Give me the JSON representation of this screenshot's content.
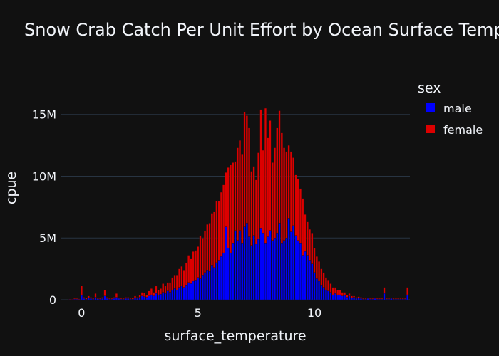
{
  "chart_data": {
    "type": "bar",
    "barmode": "stack",
    "title": "Snow Crab Catch Per Unit Effort by Ocean Surface Temperature",
    "xlabel": "surface_temperature",
    "ylabel": "cpue",
    "xlim": [
      -0.9,
      14.1
    ],
    "ylim": [
      0,
      18500000
    ],
    "x_ticks": [
      0,
      5,
      10
    ],
    "x_tick_labels": [
      "0",
      "5",
      "10"
    ],
    "y_ticks": [
      0,
      5000000,
      10000000,
      15000000
    ],
    "y_tick_labels": [
      "0",
      "5M",
      "10M",
      "15M"
    ],
    "grid": true,
    "legend": {
      "title": "sex",
      "position": "top-right"
    },
    "bin_width": 0.1,
    "x": [
      -0.5,
      -0.4,
      -0.3,
      -0.2,
      -0.1,
      0.0,
      0.1,
      0.2,
      0.3,
      0.4,
      0.5,
      0.6,
      0.7,
      0.8,
      0.9,
      1.0,
      1.1,
      1.2,
      1.3,
      1.4,
      1.5,
      1.6,
      1.7,
      1.8,
      1.9,
      2.0,
      2.1,
      2.2,
      2.3,
      2.4,
      2.5,
      2.6,
      2.7,
      2.8,
      2.9,
      3.0,
      3.1,
      3.2,
      3.3,
      3.4,
      3.5,
      3.6,
      3.7,
      3.8,
      3.9,
      4.0,
      4.1,
      4.2,
      4.3,
      4.4,
      4.5,
      4.6,
      4.7,
      4.8,
      4.9,
      5.0,
      5.1,
      5.2,
      5.3,
      5.4,
      5.5,
      5.6,
      5.7,
      5.8,
      5.9,
      6.0,
      6.1,
      6.2,
      6.3,
      6.4,
      6.5,
      6.6,
      6.7,
      6.8,
      6.9,
      7.0,
      7.1,
      7.2,
      7.3,
      7.4,
      7.5,
      7.6,
      7.7,
      7.8,
      7.9,
      8.0,
      8.1,
      8.2,
      8.3,
      8.4,
      8.5,
      8.6,
      8.7,
      8.8,
      8.9,
      9.0,
      9.1,
      9.2,
      9.3,
      9.4,
      9.5,
      9.6,
      9.7,
      9.8,
      9.9,
      10.0,
      10.1,
      10.2,
      10.3,
      10.4,
      10.5,
      10.6,
      10.7,
      10.8,
      10.9,
      11.0,
      11.1,
      11.2,
      11.3,
      11.4,
      11.5,
      11.6,
      11.7,
      11.8,
      11.9,
      12.0,
      12.1,
      12.2,
      12.3,
      12.4,
      12.5,
      12.6,
      12.7,
      12.8,
      12.9,
      13.0,
      13.1,
      13.2,
      13.3,
      13.4,
      13.5,
      13.6,
      13.7,
      13.8,
      13.9,
      14.0
    ],
    "series": [
      {
        "name": "male",
        "color": "#0000ff",
        "values": [
          0.03,
          0.02,
          0.05,
          0.04,
          0.03,
          0.35,
          0.1,
          0.05,
          0.15,
          0.1,
          0.05,
          0.2,
          0.08,
          0.05,
          0.1,
          0.3,
          0.1,
          0.05,
          0.05,
          0.1,
          0.2,
          0.1,
          0.05,
          0.05,
          0.1,
          0.1,
          0.05,
          0.05,
          0.15,
          0.1,
          0.2,
          0.3,
          0.25,
          0.2,
          0.3,
          0.4,
          0.3,
          0.5,
          0.4,
          0.45,
          0.6,
          0.5,
          0.7,
          0.6,
          0.8,
          0.9,
          0.8,
          1.0,
          1.1,
          1.0,
          1.2,
          1.4,
          1.3,
          1.5,
          1.6,
          1.8,
          1.7,
          2.0,
          2.2,
          2.4,
          2.3,
          2.8,
          2.6,
          3.0,
          3.2,
          3.5,
          3.8,
          5.9,
          4.2,
          3.8,
          4.6,
          5.6,
          4.8,
          5.6,
          4.6,
          5.9,
          6.2,
          5.1,
          4.4,
          5.2,
          4.5,
          4.9,
          5.8,
          5.4,
          4.6,
          5.1,
          5.6,
          4.8,
          5.0,
          5.4,
          6.2,
          4.6,
          4.8,
          5.0,
          6.6,
          5.5,
          6.0,
          5.2,
          4.8,
          4.6,
          3.6,
          3.9,
          3.6,
          3.2,
          2.9,
          2.2,
          1.7,
          1.5,
          1.2,
          1.0,
          0.8,
          0.7,
          0.6,
          0.4,
          0.5,
          0.4,
          0.4,
          0.3,
          0.35,
          0.2,
          0.3,
          0.15,
          0.2,
          0.1,
          0.15,
          0.1,
          0.05,
          0.05,
          0.1,
          0.05,
          0.05,
          0.1,
          0.05,
          0.05,
          0.05,
          0.5,
          0.05,
          0.05,
          0.1,
          0.05,
          0.05,
          0.05,
          0.05,
          0.05,
          0.05,
          0.4
        ]
      },
      {
        "name": "female",
        "color": "#dd0000",
        "values": [
          0.03,
          0.02,
          0.05,
          0.05,
          0.04,
          0.8,
          0.1,
          0.1,
          0.15,
          0.1,
          0.05,
          0.3,
          0.05,
          0.05,
          0.1,
          0.5,
          0.1,
          0.05,
          0.05,
          0.1,
          0.3,
          0.05,
          0.05,
          0.05,
          0.1,
          0.1,
          0.05,
          0.1,
          0.15,
          0.1,
          0.2,
          0.3,
          0.3,
          0.2,
          0.4,
          0.5,
          0.3,
          0.6,
          0.4,
          0.45,
          0.7,
          0.6,
          0.7,
          0.8,
          1.0,
          1.1,
          1.2,
          1.5,
          1.6,
          1.4,
          1.8,
          2.2,
          2.0,
          2.4,
          2.4,
          2.5,
          3.5,
          3.0,
          3.4,
          3.7,
          3.9,
          4.2,
          4.5,
          5.0,
          4.8,
          5.2,
          5.5,
          4.4,
          6.5,
          7.1,
          6.5,
          5.6,
          7.5,
          7.3,
          7.2,
          9.3,
          8.7,
          8.8,
          6.0,
          5.6,
          5.2,
          7.0,
          9.6,
          6.7,
          10.9,
          8.0,
          8.9,
          6.3,
          7.3,
          8.5,
          9.1,
          8.9,
          7.5,
          7.0,
          5.9,
          6.5,
          5.5,
          4.9,
          5.0,
          4.4,
          4.6,
          3.0,
          2.7,
          2.5,
          2.5,
          2.0,
          1.8,
          1.6,
          1.3,
          1.2,
          1.0,
          0.9,
          0.7,
          0.6,
          0.5,
          0.4,
          0.4,
          0.3,
          0.25,
          0.2,
          0.2,
          0.15,
          0.1,
          0.1,
          0.1,
          0.1,
          0.05,
          0.05,
          0.05,
          0.05,
          0.05,
          0.05,
          0.05,
          0.05,
          0.05,
          0.5,
          0.05,
          0.05,
          0.05,
          0.05,
          0.05,
          0.05,
          0.05,
          0.05,
          0.05,
          0.6
        ]
      }
    ],
    "value_unit": "millions"
  }
}
